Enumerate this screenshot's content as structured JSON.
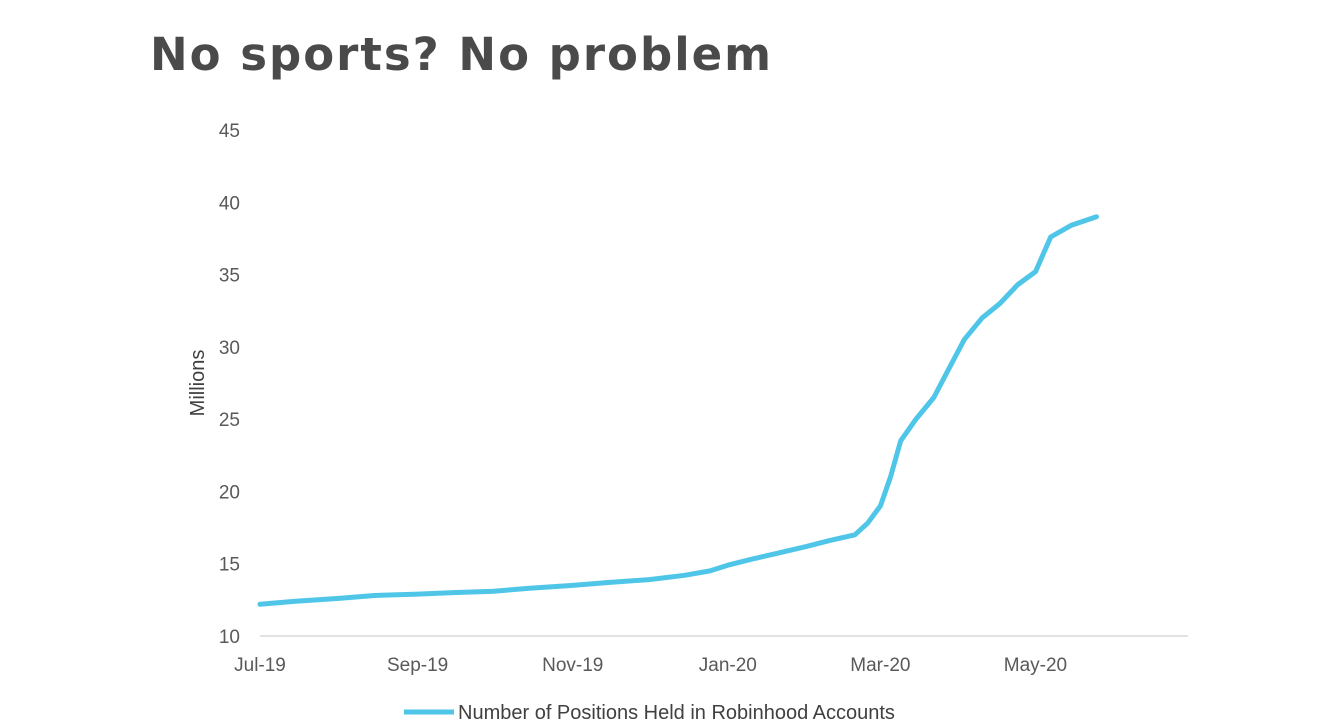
{
  "title": "No sports? No problem",
  "colors": {
    "series": "#4FC6E8",
    "axis": "#d9d9d9",
    "title": "#4a4a4a"
  },
  "chart_data": {
    "type": "line",
    "title": "No sports? No problem",
    "ylabel": "Millions",
    "xlabel": "",
    "ylim": [
      10,
      45
    ],
    "yticks": [
      10,
      15,
      20,
      25,
      30,
      35,
      40,
      45
    ],
    "xlim": [
      "2019-07-01",
      "2020-06-30"
    ],
    "xticks": [
      {
        "label": "Jul-19",
        "date": "2019-07-01"
      },
      {
        "label": "Sep-19",
        "date": "2019-09-01"
      },
      {
        "label": "Nov-19",
        "date": "2019-11-01"
      },
      {
        "label": "Jan-20",
        "date": "2020-01-01"
      },
      {
        "label": "Mar-20",
        "date": "2020-03-01"
      },
      {
        "label": "May-20",
        "date": "2020-05-01"
      }
    ],
    "grid": false,
    "legend_position": "bottom",
    "series": [
      {
        "name": "Number of Positions Held in Robinhood Accounts",
        "points": [
          [
            "2019-07-01",
            12.2
          ],
          [
            "2019-07-15",
            12.4
          ],
          [
            "2019-08-01",
            12.6
          ],
          [
            "2019-08-15",
            12.8
          ],
          [
            "2019-09-01",
            12.9
          ],
          [
            "2019-09-15",
            13.0
          ],
          [
            "2019-10-01",
            13.1
          ],
          [
            "2019-10-15",
            13.3
          ],
          [
            "2019-11-01",
            13.5
          ],
          [
            "2019-11-15",
            13.7
          ],
          [
            "2019-12-01",
            13.9
          ],
          [
            "2019-12-15",
            14.2
          ],
          [
            "2019-12-25",
            14.5
          ],
          [
            "2020-01-01",
            14.9
          ],
          [
            "2020-01-10",
            15.3
          ],
          [
            "2020-01-20",
            15.7
          ],
          [
            "2020-02-01",
            16.2
          ],
          [
            "2020-02-10",
            16.6
          ],
          [
            "2020-02-20",
            17.0
          ],
          [
            "2020-02-25",
            17.8
          ],
          [
            "2020-03-01",
            19.0
          ],
          [
            "2020-03-05",
            21.0
          ],
          [
            "2020-03-09",
            23.5
          ],
          [
            "2020-03-15",
            25.0
          ],
          [
            "2020-03-22",
            26.5
          ],
          [
            "2020-03-28",
            28.5
          ],
          [
            "2020-04-03",
            30.5
          ],
          [
            "2020-04-10",
            32.0
          ],
          [
            "2020-04-17",
            33.0
          ],
          [
            "2020-04-24",
            34.3
          ],
          [
            "2020-05-01",
            35.2
          ],
          [
            "2020-05-07",
            37.6
          ],
          [
            "2020-05-15",
            38.4
          ],
          [
            "2020-05-25",
            39.0
          ]
        ]
      }
    ]
  }
}
